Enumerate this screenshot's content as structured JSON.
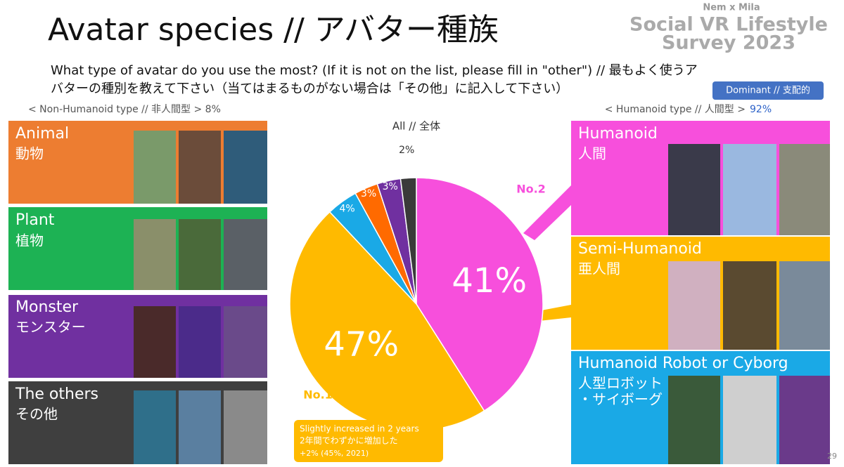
{
  "header": {
    "title": "Avatar species // アバター種族",
    "question_line1": "What type of avatar do you use the most? (If it is not on the list, please fill in \"other\") // 最もよく使うア",
    "question_line2": "バターの種別を教えて下さい（当てはまるものがない場合は「その他」に記入して下さい）",
    "dominant_badge": "Dominant // 支配的"
  },
  "logo": {
    "line1": "Nem x Mila",
    "line2": "Social VR Lifestyle",
    "line3": "Survey 2023"
  },
  "non_humanoid": {
    "heading": "< Non-Humanoid type // 非人間型 > 8%",
    "panels": [
      {
        "en": "Animal",
        "ja": "動物"
      },
      {
        "en": "Plant",
        "ja": "植物"
      },
      {
        "en": "Monster",
        "ja": "モンスター"
      },
      {
        "en": "The others",
        "ja": "その他"
      }
    ]
  },
  "humanoid": {
    "heading": "< Humanoid type // 人間型 >",
    "share": "92%",
    "panels": [
      {
        "en": "Humanoid",
        "ja": "人間"
      },
      {
        "en": "Semi-Humanoid",
        "ja": "亜人間"
      },
      {
        "en": "Humanoid Robot or Cyborg",
        "ja_lines": [
          "人型ロボット",
          "・サイボーグ"
        ]
      }
    ]
  },
  "chart_data": {
    "type": "pie",
    "title": "All // 全体",
    "values": [
      41,
      47,
      4,
      3,
      3,
      2
    ],
    "value_labels": [
      "41%",
      "47%",
      "4%",
      "3%",
      "3%",
      "2%"
    ],
    "colors": [
      "#f74fdc",
      "#ffba00",
      "#1aa9e6",
      "#ff6a00",
      "#7030a0",
      "#3a3a3a"
    ],
    "annotations": [
      "No.2",
      "No.1"
    ],
    "note_lines": [
      "Slightly increased in 2 years",
      "2年間でわずかに増加した",
      "+2% (45%, 2021)"
    ]
  },
  "page_number": "29"
}
